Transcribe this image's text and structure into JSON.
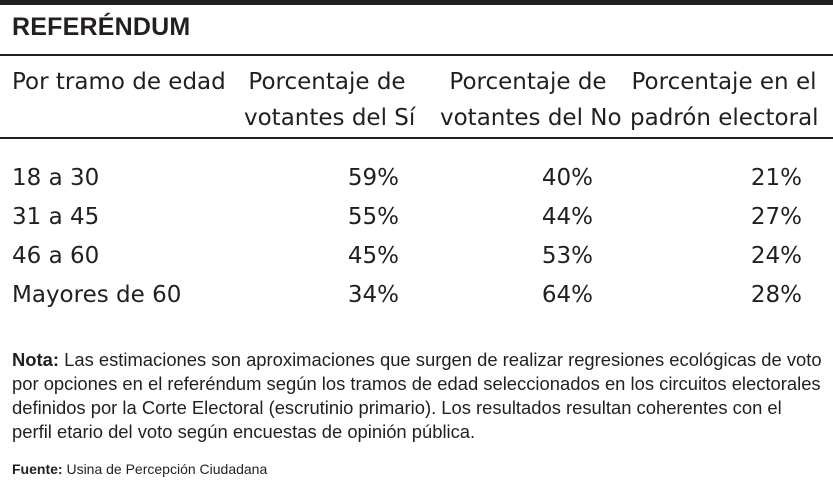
{
  "title": "REFERÉNDUM",
  "table": {
    "headers": [
      [
        "Por tramo de edad",
        ""
      ],
      [
        "Porcentaje de",
        "votantes del Sí"
      ],
      [
        "Porcentaje de",
        "votantes del No"
      ],
      [
        "Porcentaje en el",
        "padrón electoral"
      ]
    ],
    "rows": [
      {
        "label": "18 a 30",
        "si": "59%",
        "no": "40%",
        "padron": "21%"
      },
      {
        "label": "31 a 45",
        "si": "55%",
        "no": "44%",
        "padron": "27%"
      },
      {
        "label": "46 a 60",
        "si": "45%",
        "no": "53%",
        "padron": "24%"
      },
      {
        "label": "Mayores de 60",
        "si": "34%",
        "no": "64%",
        "padron": "28%"
      }
    ]
  },
  "note": {
    "label": "Nota:",
    "text": " Las estimaciones son aproximaciones que surgen de realizar regresiones ecológicas de voto por opciones en el referéndum según los tramos de edad seleccionados en los circuitos electorales definidos por la Corte Electoral (escrutinio primario). Los resultados resultan coherentes con el perfil etario del voto según encuestas de opinión pública."
  },
  "source": {
    "label": "Fuente:",
    "text": " Usina de Percepción Ciudadana"
  }
}
